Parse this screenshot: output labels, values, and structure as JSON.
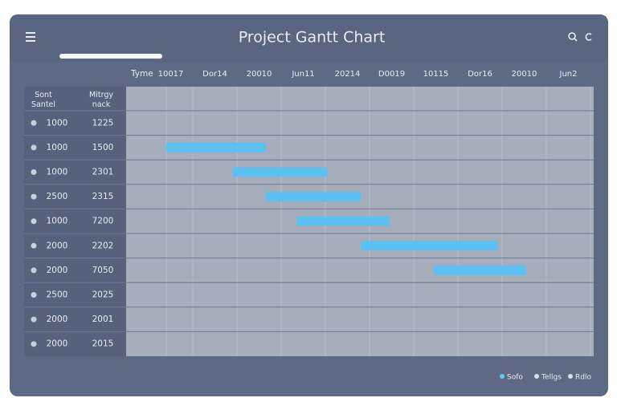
{
  "header": {
    "title": "Project Gantt Chart"
  },
  "timeline": {
    "corner": "Tyme",
    "columns": [
      "10017",
      "Dor14",
      "20010",
      "Jun11",
      "20214",
      "D0019",
      "10115",
      "Dor16",
      "20010",
      "Jun2"
    ],
    "bars": [
      null,
      {
        "start": 0.4,
        "end": 2.65
      },
      {
        "start": 1.9,
        "end": 4.05
      },
      {
        "start": 2.65,
        "end": 4.8
      },
      {
        "start": 3.35,
        "end": 5.45
      },
      {
        "start": 4.8,
        "end": 7.9
      },
      {
        "start": 6.45,
        "end": 8.55
      },
      null,
      null,
      null
    ]
  },
  "table": {
    "headers": [
      "Sont Santel",
      "Mitrgy nack"
    ],
    "rows": [
      [
        "1000",
        "1225"
      ],
      [
        "1000",
        "1500"
      ],
      [
        "1000",
        "2301"
      ],
      [
        "2500",
        "2315"
      ],
      [
        "1000",
        "7200"
      ],
      [
        "2000",
        "2202"
      ],
      [
        "2000",
        "7050"
      ],
      [
        "2500",
        "2025"
      ],
      [
        "2000",
        "2001"
      ],
      [
        "2000",
        "2015"
      ]
    ]
  },
  "legend": [
    "Sofo",
    "Tellgs",
    "Rdlo"
  ]
}
